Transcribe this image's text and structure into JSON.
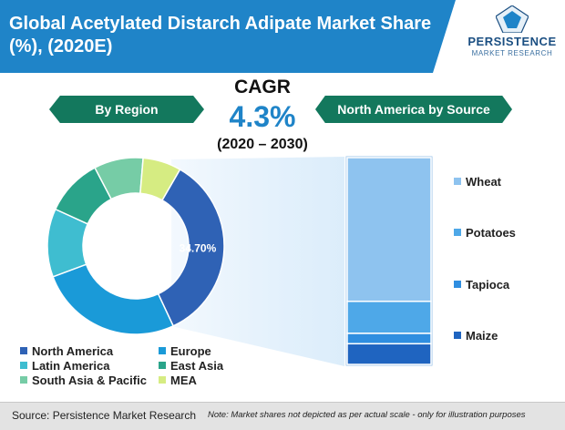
{
  "header": {
    "title": "Global Acetylated Distarch Adipate Market Share (%), (2020E)"
  },
  "logo": {
    "name": "PERSISTENCE",
    "sub": "MARKET RESEARCH"
  },
  "banners": {
    "left": "By Region",
    "right": "North America by Source"
  },
  "cagr": {
    "label": "CAGR",
    "value": "4.3%",
    "period": "(2020 – 2030)"
  },
  "colors": {
    "header": "#1f84c8",
    "banner": "#13785d",
    "north_america": "#2f62b5",
    "europe": "#1a9ad8",
    "latin_america": "#3fbdd0",
    "east_asia": "#2aa48a",
    "south_asia_pacific": "#76cca6",
    "mea": "#d6ec82",
    "wheat": "#8ec3ef",
    "potatoes": "#4ea8e8",
    "tapioca": "#2f8ee0",
    "maize": "#1f64c0"
  },
  "chart_data": [
    {
      "type": "pie",
      "variant": "donut",
      "categories": [
        "North America",
        "Europe",
        "Latin America",
        "East Asia",
        "South Asia & Pacific",
        "MEA"
      ],
      "values": [
        34.7,
        26.3,
        12.5,
        10.5,
        9.0,
        7.0
      ],
      "data_labels": [
        "34.70%",
        "",
        "",
        "",
        "",
        ""
      ],
      "legend_placement": "bottom"
    },
    {
      "type": "bar",
      "variant": "100%-stacked",
      "categories": [
        "Wheat",
        "Potatoes",
        "Tapioca",
        "Maize"
      ],
      "values": [
        69.5,
        15.5,
        5.0,
        10.0
      ],
      "legend_placement": "right"
    }
  ],
  "footer": {
    "source": "Source: Persistence Market Research",
    "note": "Note: Market shares not depicted as per actual scale - only for illustration purposes"
  }
}
